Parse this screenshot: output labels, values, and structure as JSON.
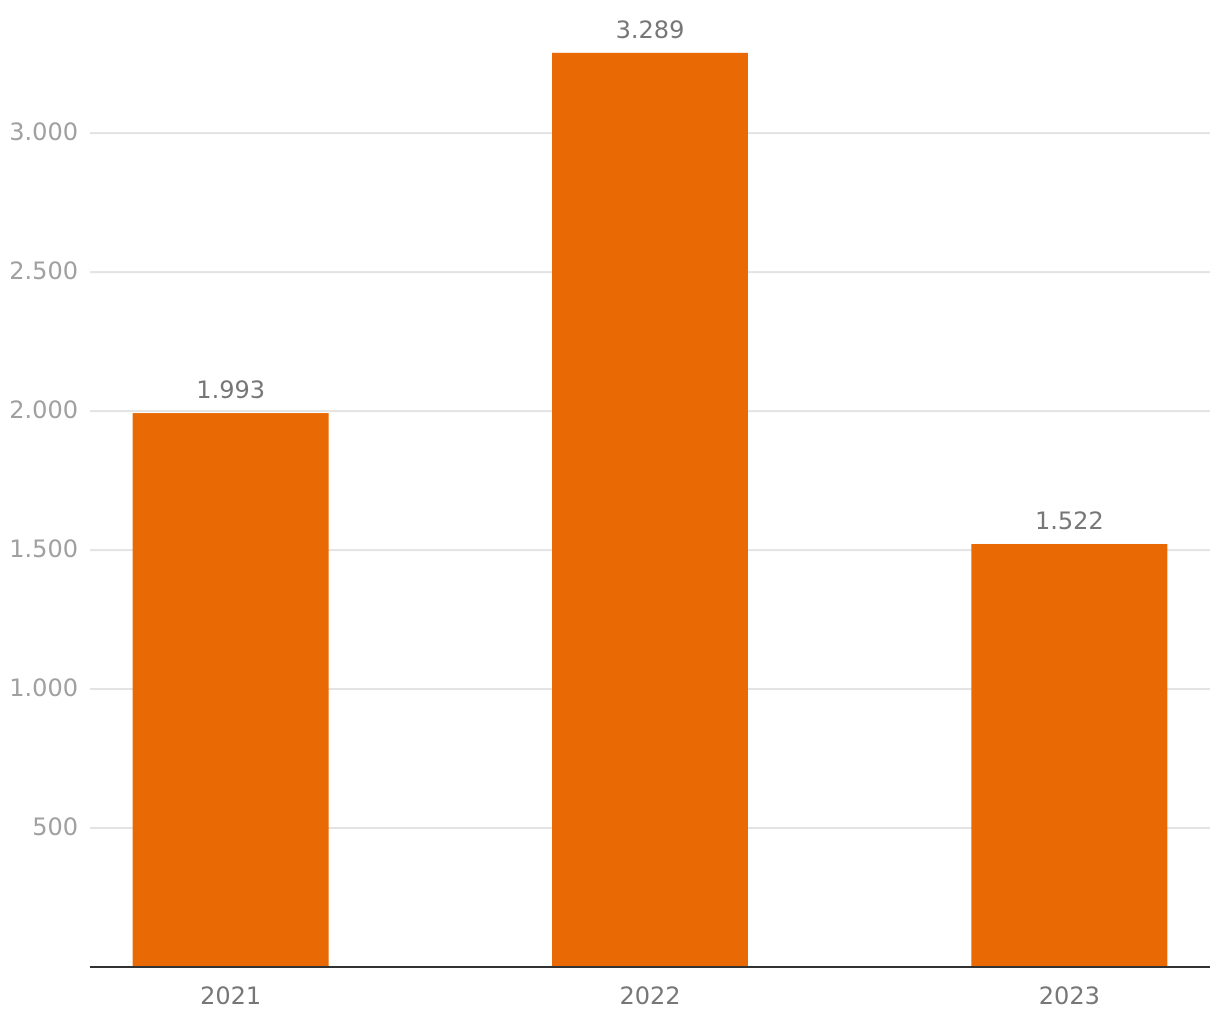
{
  "chart_data": {
    "type": "bar",
    "categories": [
      "2021",
      "2022",
      "2023"
    ],
    "values": [
      1993,
      3289,
      1522
    ],
    "value_labels": [
      "1.993",
      "3.289",
      "1.522"
    ],
    "color": "#e96a04",
    "ylim": [
      0,
      3400
    ],
    "yticks": [
      500,
      {
        "value": 1000,
        "label": "1.000"
      },
      {
        "value": 1500,
        "label": "1.500"
      },
      {
        "value": 2000,
        "label": "2.000"
      },
      {
        "value": 2500,
        "label": "2.500"
      },
      {
        "value": 3000,
        "label": "3.000"
      }
    ],
    "grid": true
  }
}
